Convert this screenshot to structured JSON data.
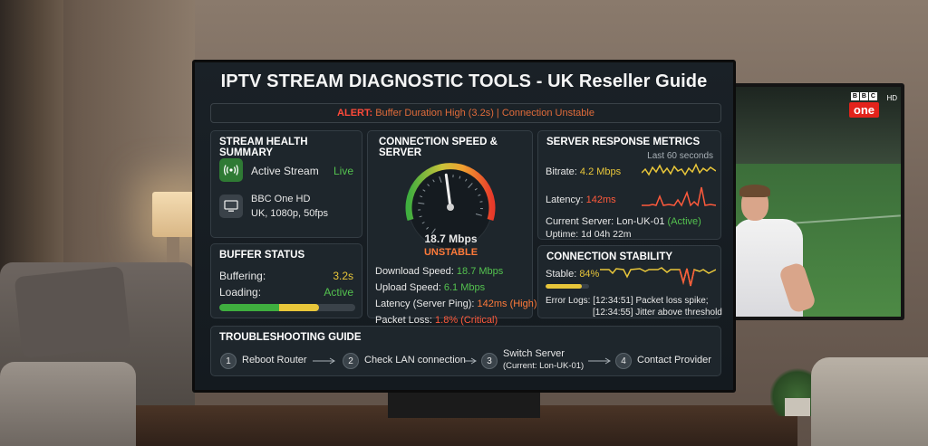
{
  "title": "IPTV STREAM DIAGNOSTIC TOOLS - UK Reseller Guide",
  "alert": {
    "label": "ALERT:",
    "text": "Buffer Duration High (3.2s) | Connection Unstable"
  },
  "stream_health": {
    "title": "STREAM HEALTH SUMMARY",
    "status_label": "Active Stream",
    "status_value": "Live",
    "channel_name": "BBC One HD",
    "channel_details": "UK, 1080p, 50fps",
    "icons": [
      "broadcast-icon",
      "monitor-icon"
    ]
  },
  "buffer": {
    "title": "BUFFER STATUS",
    "buffering_label": "Buffering:",
    "buffering_value": "3.2s",
    "loading_label": "Loading:",
    "loading_value": "Active",
    "progress": 0.73
  },
  "speed": {
    "title": "CONNECTION SPEED & SERVER",
    "gauge_value": "18.7 Mbps",
    "gauge_status": "UNSTABLE",
    "gauge_fraction": 0.55,
    "download_label": "Download Speed:",
    "download_value": "18.7 Mbps",
    "upload_label": "Upload Speed:",
    "upload_value": "6.1 Mbps",
    "latency_label": "Latency (Server Ping):",
    "latency_value": "142ms (High)",
    "loss_label": "Packet Loss:",
    "loss_value": "1.8% (Critical)"
  },
  "server": {
    "title": "SERVER RESPONSE METRICS",
    "window": "Last 60 seconds",
    "bitrate_label": "Bitrate:",
    "bitrate_value": "4.2 Mbps",
    "latency_label": "Latency:",
    "latency_value": "142ms",
    "current_label": "Current Server: Lon-UK-01",
    "current_status": "(Active)",
    "uptime": "Uptime: 1d 04h 22m"
  },
  "stability": {
    "title": "CONNECTION STABILITY",
    "stable_label": "Stable:",
    "stable_value": "84%",
    "stable_fraction": 0.84,
    "error_label": "Error Logs:",
    "error_1": "[12:34:51] Packet loss spike;",
    "error_2": "[12:34:55] Jitter above threshold"
  },
  "troubleshooting": {
    "title": "TROUBLESHOOTING GUIDE",
    "steps": [
      {
        "num": "1",
        "label": "Reboot Router",
        "sub": ""
      },
      {
        "num": "2",
        "label": "Check LAN connection",
        "sub": ""
      },
      {
        "num": "3",
        "label": "Switch Server",
        "sub": "(Current: Lon-UK-01)"
      },
      {
        "num": "4",
        "label": "Contact Provider",
        "sub": ""
      }
    ]
  },
  "background_tv": {
    "brand_letters": [
      "B",
      "B",
      "C"
    ],
    "channel": "one",
    "quality": "HD"
  },
  "colors": {
    "green": "#54c24f",
    "yellow": "#e8c63a",
    "red": "#ff5a3c",
    "alert": "#e06b3a"
  }
}
